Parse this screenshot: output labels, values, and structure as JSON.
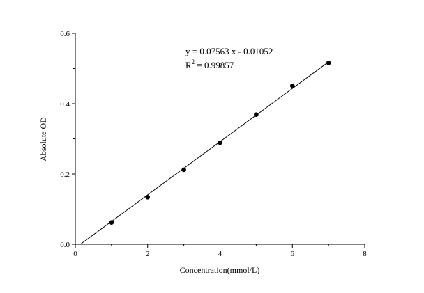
{
  "chart_data": {
    "type": "scatter",
    "title": "",
    "xlabel": "Concentration(mmol/L)",
    "ylabel": "Absolute OD",
    "xlim": [
      0,
      8
    ],
    "ylim": [
      0.0,
      0.6
    ],
    "x_ticks": [
      "0",
      "2",
      "4",
      "6",
      "8"
    ],
    "y_ticks": [
      "0.0",
      "0.2",
      "0.4",
      "0.6"
    ],
    "grid": false,
    "legend": "none",
    "series": [
      {
        "x": [
          1,
          2,
          3,
          4,
          5,
          6,
          7
        ],
        "y": [
          0.062,
          0.134,
          0.212,
          0.289,
          0.369,
          0.451,
          0.516
        ]
      }
    ],
    "fit_line": {
      "slope": 0.07563,
      "intercept": -0.01052,
      "x_range": [
        0.139,
        7.0
      ]
    },
    "annotations": {
      "equation": "y = 0.07563 x - 0.01052",
      "r_squared_prefix": "R",
      "r_squared_exponent": "2",
      "r_squared_value": " = 0.99857"
    },
    "colors": {
      "points": "#000000",
      "line": "#000000",
      "axes": "#000000"
    }
  }
}
